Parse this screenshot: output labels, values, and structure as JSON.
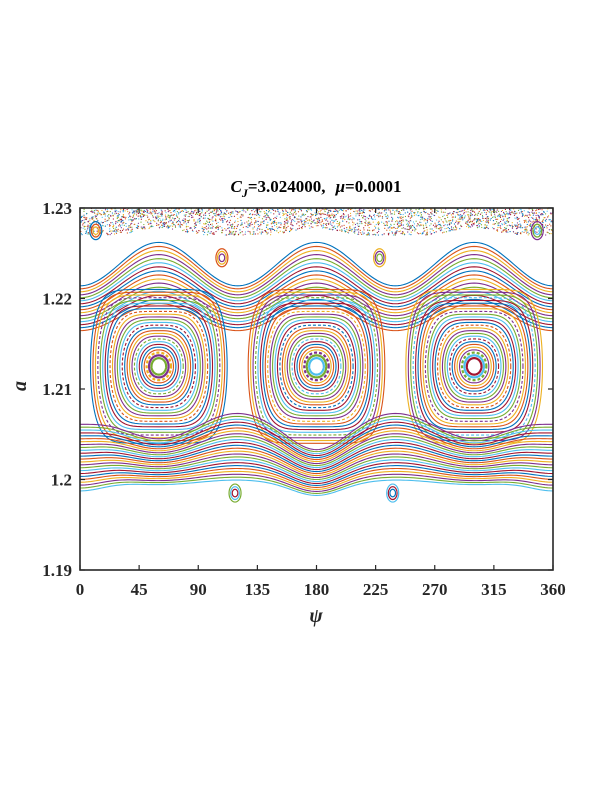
{
  "chart_data": {
    "type": "scatter",
    "title": {
      "cj_symbol": "C",
      "cj_sub": "J",
      "cj_value": "=3.024000,",
      "mu_symbol": "μ",
      "mu_value": "=0.0001"
    },
    "xlabel": "ψ",
    "ylabel": "a",
    "xlim": [
      0,
      360
    ],
    "ylim": [
      1.19,
      1.23
    ],
    "xticks": [
      "0",
      "45",
      "90",
      "135",
      "180",
      "225",
      "270",
      "315",
      "360"
    ],
    "yticks": [
      "1.19",
      "1.2",
      "1.21",
      "1.22",
      "1.23"
    ],
    "grid": false,
    "islands": [
      {
        "center_psi": 60,
        "center_a": 1.2125,
        "half_width_psi": 52,
        "half_height_a": 0.0085
      },
      {
        "center_psi": 180,
        "center_a": 1.2125,
        "half_width_psi": 52,
        "half_height_a": 0.0085
      },
      {
        "center_psi": 300,
        "center_a": 1.2125,
        "half_width_psi": 52,
        "half_height_a": 0.0085
      }
    ],
    "hyperbolic_points_psi": [
      0,
      120,
      240,
      360
    ],
    "small_islands": [
      {
        "center_psi": 12,
        "center_a": 1.2275
      },
      {
        "center_psi": 108,
        "center_a": 1.2245
      },
      {
        "center_psi": 228,
        "center_a": 1.2245
      },
      {
        "center_psi": 348,
        "center_a": 1.2275
      },
      {
        "center_psi": 118,
        "center_a": 1.1985
      },
      {
        "center_psi": 238,
        "center_a": 1.1985
      }
    ],
    "chaotic_band_a": [
      1.2265,
      1.23
    ],
    "series_colors": [
      "#0072BD",
      "#D95319",
      "#EDB120",
      "#7E2F8E",
      "#77AC30",
      "#4DBEEE",
      "#A2142F"
    ]
  }
}
